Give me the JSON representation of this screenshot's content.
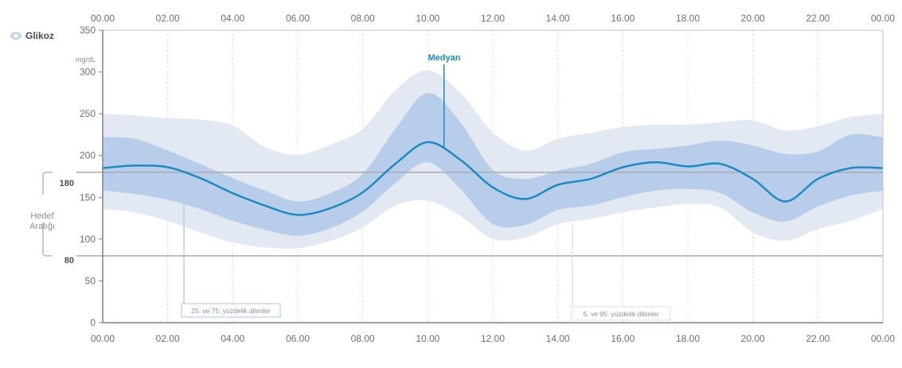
{
  "chart_data": {
    "type": "area",
    "legend": {
      "label": "Glikoz",
      "icon": "glucose-drop-icon"
    },
    "y_unit": "mg/dL",
    "ylim": [
      0,
      350
    ],
    "yticks": [
      0,
      50,
      100,
      150,
      200,
      250,
      300,
      350
    ],
    "xlim": [
      0,
      24
    ],
    "xticks": [
      "00.00",
      "02.00",
      "04.00",
      "06.00",
      "08.00",
      "10.00",
      "12.00",
      "14.00",
      "16.00",
      "18.00",
      "20.00",
      "22.00",
      "00.00"
    ],
    "target_range": {
      "label_line1": "Hedef",
      "label_line2": "Aralığı",
      "low": 80,
      "high": 180,
      "low_label": "80",
      "high_label": "180"
    },
    "x": [
      0,
      1,
      2,
      3,
      4,
      5,
      6,
      7,
      8,
      9,
      10,
      11,
      12,
      13,
      14,
      15,
      16,
      17,
      18,
      19,
      20,
      21,
      22,
      23,
      24
    ],
    "series": [
      {
        "name": "Medyan",
        "color": "#1d8ac0",
        "values": [
          185,
          188,
          186,
          173,
          155,
          140,
          129,
          137,
          156,
          190,
          216,
          195,
          162,
          148,
          165,
          172,
          186,
          192,
          187,
          190,
          172,
          145,
          172,
          185,
          185
        ]
      },
      {
        "name": "25. ve 75. yüzdelik dilimler",
        "color": "#b8cde9",
        "lower": [
          158,
          154,
          147,
          136,
          122,
          111,
          104,
          113,
          133,
          167,
          192,
          160,
          118,
          117,
          135,
          140,
          150,
          158,
          160,
          155,
          132,
          121,
          139,
          152,
          158
        ],
        "upper": [
          222,
          220,
          206,
          190,
          173,
          158,
          145,
          155,
          178,
          232,
          275,
          240,
          183,
          172,
          182,
          190,
          204,
          208,
          212,
          218,
          212,
          202,
          205,
          225,
          222
        ]
      },
      {
        "name": "5. ve 95. yüzdelik dilimler",
        "color": "#e3e9f2",
        "lower": [
          136,
          132,
          122,
          108,
          96,
          90,
          89,
          98,
          114,
          140,
          146,
          128,
          100,
          102,
          118,
          124,
          132,
          138,
          142,
          138,
          108,
          98,
          112,
          122,
          136
        ],
        "upper": [
          250,
          248,
          245,
          243,
          236,
          210,
          201,
          213,
          232,
          278,
          302,
          275,
          228,
          206,
          220,
          227,
          234,
          237,
          237,
          240,
          242,
          230,
          235,
          246,
          250
        ]
      }
    ],
    "annotations": {
      "median": "Medyan",
      "iqr": "25. ve 75. yüzdelik dilimler",
      "outer": "5. ve 95. yüzdelik dilimler"
    }
  }
}
